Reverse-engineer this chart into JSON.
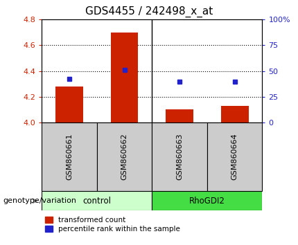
{
  "title": "GDS4455 / 242498_x_at",
  "samples": [
    "GSM860661",
    "GSM860662",
    "GSM860663",
    "GSM860664"
  ],
  "groups": [
    "control",
    "control",
    "RhoGDI2",
    "RhoGDI2"
  ],
  "bar_values": [
    4.28,
    4.7,
    4.1,
    4.13
  ],
  "dot_values": [
    4.34,
    4.41,
    4.32,
    4.32
  ],
  "ylim_left": [
    4.0,
    4.8
  ],
  "ylim_right": [
    0,
    100
  ],
  "yticks_left": [
    4.0,
    4.2,
    4.4,
    4.6,
    4.8
  ],
  "yticks_right": [
    0,
    25,
    50,
    75,
    100
  ],
  "ytick_labels_right": [
    "0",
    "25",
    "50",
    "75",
    "100%"
  ],
  "bar_color": "#cc2200",
  "dot_color": "#2222cc",
  "control_color": "#ccffcc",
  "rho_color": "#44dd44",
  "group_label": "genotype/variation",
  "legend_items": [
    "transformed count",
    "percentile rank within the sample"
  ],
  "legend_colors": [
    "#cc2200",
    "#2222cc"
  ],
  "grid_yticks": [
    4.2,
    4.4,
    4.6
  ],
  "sample_box_color": "#cccccc",
  "bar_bottom": 4.0,
  "bar_width": 0.5,
  "title_fontsize": 11,
  "tick_fontsize": 8,
  "label_fontsize": 8,
  "legend_fontsize": 7.5
}
